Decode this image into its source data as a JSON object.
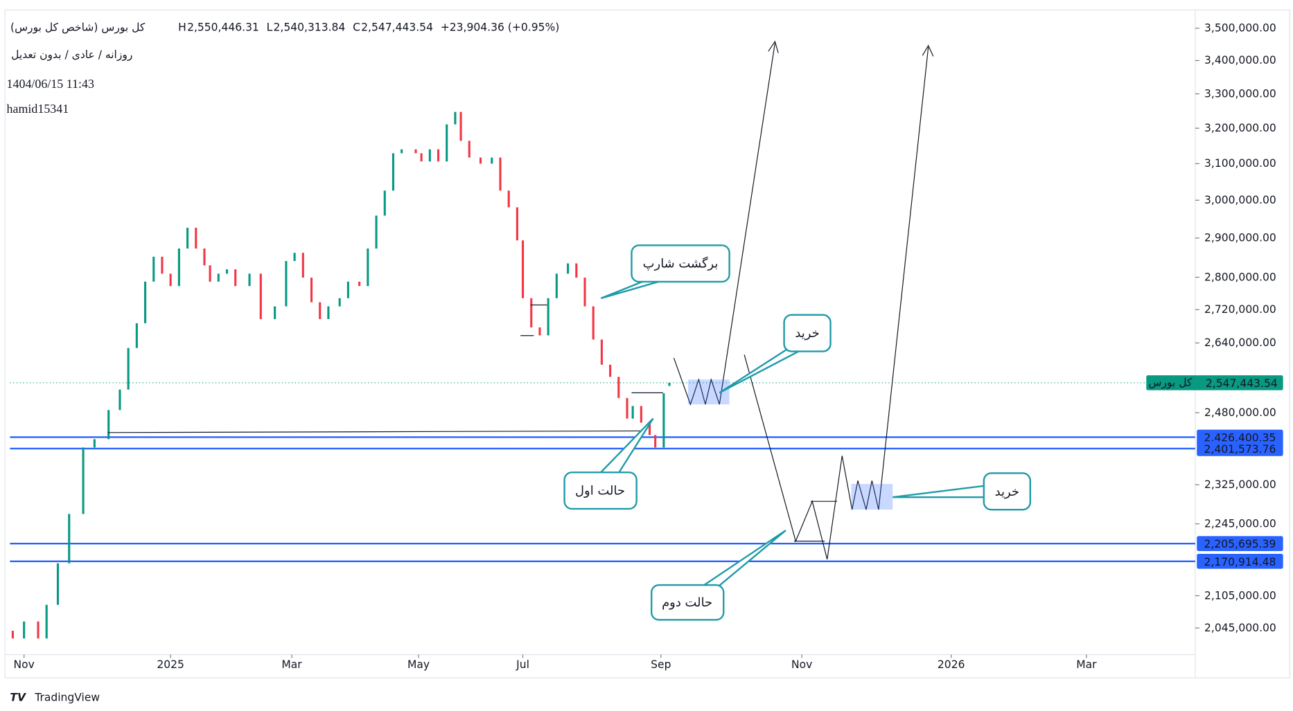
{
  "chart_data": {
    "type": "candlestick",
    "title": "کل بورس (شاخص کل بورس)",
    "header_values": [
      {
        "label": "H",
        "value": "2,550,446.31"
      },
      {
        "label": "L",
        "value": "2,540,313.84"
      },
      {
        "label": "C",
        "value": "2,547,443.54"
      }
    ],
    "change": "+23,904.36 (+0.95%)",
    "subtitle": "روزانه / عادی / بدون تعدیل",
    "date": "1404/06/15 11:43",
    "author": "hamid15341",
    "log_scale": true,
    "up_color": "#089981",
    "down_color": "#f23645",
    "x": [
      1,
      5,
      10,
      13,
      17,
      21,
      26,
      30,
      35,
      39,
      42,
      45,
      48,
      51,
      54,
      57,
      60,
      63,
      66,
      69,
      71,
      74,
      77,
      80,
      85,
      89,
      94,
      98,
      101,
      104,
      107,
      110,
      113,
      117,
      120,
      124,
      127,
      130,
      133,
      136,
      139,
      144,
      146,
      149,
      152,
      155,
      158,
      160,
      163,
      167,
      171,
      174,
      177,
      180,
      182,
      185,
      188,
      191,
      194,
      198,
      201,
      204,
      207,
      210,
      213,
      216,
      219,
      221,
      224,
      227,
      229,
      232,
      234
    ],
    "open": [
      2040000,
      2026000,
      2057000,
      2026000,
      2088000,
      2167000,
      2265000,
      2404000,
      2422000,
      2486000,
      2532000,
      2628000,
      2687000,
      2789000,
      2852000,
      2809000,
      2778000,
      2873000,
      2927000,
      2873000,
      2830000,
      2789000,
      2809000,
      2820000,
      2778000,
      2809000,
      2697000,
      2728000,
      2841000,
      2862000,
      2799000,
      2738000,
      2697000,
      2728000,
      2748000,
      2789000,
      2778000,
      2873000,
      2959000,
      3026000,
      3129000,
      3140000,
      3129000,
      3106000,
      3140000,
      3106000,
      3211000,
      3247000,
      3164000,
      3117000,
      3100000,
      3117000,
      3026000,
      2981000,
      2894000,
      2748000,
      2677000,
      2658000,
      2748000,
      2809000,
      2835000,
      2799000,
      2728000,
      2648000,
      2589000,
      2561000,
      2513000,
      2467000,
      2495000,
      2458000,
      2431000,
      2404000,
      2540313.84
    ],
    "close": [
      2026000,
      2057000,
      2026000,
      2088000,
      2167000,
      2265000,
      2404000,
      2422000,
      2486000,
      2532000,
      2628000,
      2687000,
      2789000,
      2852000,
      2809000,
      2778000,
      2873000,
      2927000,
      2873000,
      2830000,
      2789000,
      2809000,
      2820000,
      2778000,
      2809000,
      2697000,
      2728000,
      2841000,
      2862000,
      2799000,
      2738000,
      2697000,
      2728000,
      2748000,
      2789000,
      2778000,
      2873000,
      2959000,
      3026000,
      3129000,
      3140000,
      3129000,
      3106000,
      3140000,
      3106000,
      3211000,
      3247000,
      3164000,
      3117000,
      3100000,
      3117000,
      3026000,
      2981000,
      2894000,
      2748000,
      2677000,
      2658000,
      2748000,
      2809000,
      2835000,
      2799000,
      2728000,
      2648000,
      2589000,
      2561000,
      2513000,
      2467000,
      2495000,
      2458000,
      2431000,
      2404000,
      2523539.18,
      2547443.54
    ],
    "xlim": [
      0,
      420
    ],
    "xticks": [
      {
        "value": 5,
        "label": "Nov"
      },
      {
        "value": 57,
        "label": "2025"
      },
      {
        "value": 100,
        "label": "Mar"
      },
      {
        "value": 145,
        "label": "May"
      },
      {
        "value": 182,
        "label": "Jul"
      },
      {
        "value": 231,
        "label": "Sep"
      },
      {
        "value": 281,
        "label": "Nov"
      },
      {
        "value": 334,
        "label": "2026"
      },
      {
        "value": 382,
        "label": "Mar"
      }
    ],
    "ylim": [
      1996800,
      3557600
    ],
    "yticks": [
      {
        "value": 3500000,
        "label": "3,500,000.00"
      },
      {
        "value": 3400000,
        "label": "3,400,000.00"
      },
      {
        "value": 3300000,
        "label": "3,300,000.00"
      },
      {
        "value": 3200000,
        "label": "3,200,000.00"
      },
      {
        "value": 3100000,
        "label": "3,100,000.00"
      },
      {
        "value": 3000000,
        "label": "3,000,000.00"
      },
      {
        "value": 2900000,
        "label": "2,900,000.00"
      },
      {
        "value": 2800000,
        "label": "2,800,000.00"
      },
      {
        "value": 2720000,
        "label": "2,720,000.00"
      },
      {
        "value": 2640000,
        "label": "2,640,000.00"
      },
      {
        "value": 2480000,
        "label": "2,480,000.00"
      },
      {
        "value": 2325000,
        "label": "2,325,000.00"
      },
      {
        "value": 2245000,
        "label": "2,245,000.00"
      },
      {
        "value": 2105000,
        "label": "2,105,000.00"
      },
      {
        "value": 2045000,
        "label": "2,045,000.00"
      }
    ],
    "levels": [
      {
        "value": 2426400.35,
        "label": "2,426,400.35"
      },
      {
        "value": 2401573.76,
        "label": "2,401,573.76"
      },
      {
        "value": 2205695.39,
        "label": "2,205,695.39"
      },
      {
        "value": 2170914.48,
        "label": "2,170,914.48"
      }
    ],
    "level_color": "#2962ff",
    "last_price": {
      "name": "کل بورس",
      "value": 2547443.54,
      "label": "2,547,443.54",
      "color": "#089981"
    },
    "annotations": [
      "برگشت شارپ",
      "خرید",
      "حالت اول",
      "حالت دوم",
      "خرید"
    ]
  },
  "brand": "TradingView"
}
